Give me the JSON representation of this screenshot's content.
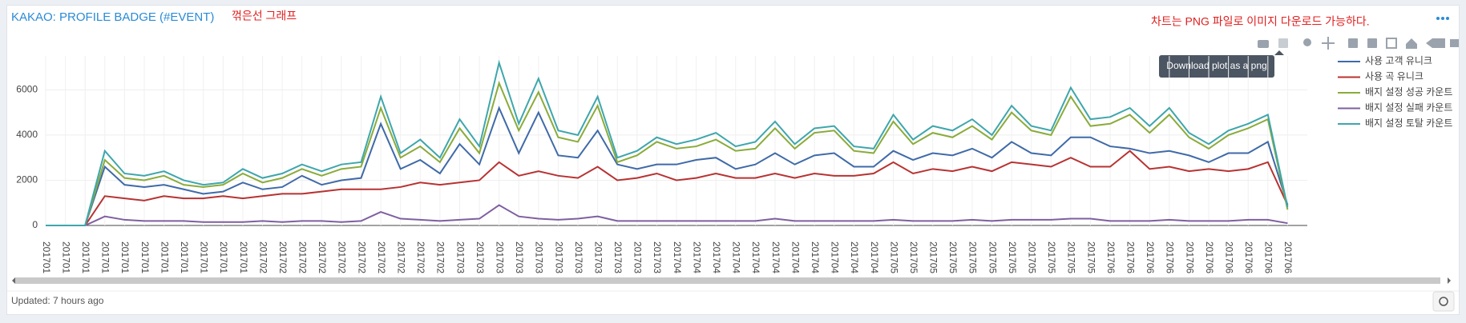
{
  "header": {
    "title": "KAKAO: PROFILE BADGE (#EVENT)",
    "subtitle": "꺾은선 그래프",
    "note": "차트는 PNG 파일로 이미지 다운로드 가능하다."
  },
  "tooltip": "Download plot as a png",
  "footer": {
    "updated": "Updated: 7 hours ago"
  },
  "chart_data": {
    "type": "line",
    "categories": [
      "201701",
      "201701",
      "201701",
      "201701",
      "201701",
      "201701",
      "201701",
      "201701",
      "201701",
      "201701",
      "201701",
      "201702",
      "201702",
      "201702",
      "201702",
      "201702",
      "201702",
      "201702",
      "201702",
      "201702",
      "201702",
      "201703",
      "201703",
      "201703",
      "201703",
      "201703",
      "201703",
      "201703",
      "201703",
      "201703",
      "201703",
      "201703",
      "201704",
      "201704",
      "201704",
      "201704",
      "201704",
      "201704",
      "201704",
      "201704",
      "201704",
      "201704",
      "201704",
      "201705",
      "201705",
      "201705",
      "201705",
      "201705",
      "201705",
      "201705",
      "201705",
      "201705",
      "201705",
      "201705",
      "201706",
      "201706",
      "201706",
      "201706",
      "201706",
      "201706",
      "201706",
      "201706",
      "201706",
      "201706"
    ],
    "series": [
      {
        "name": "사용 고객 유니크",
        "color": "#3f6aa8",
        "values": [
          0,
          0,
          0,
          2600,
          1800,
          1700,
          1800,
          1600,
          1400,
          1500,
          1900,
          1600,
          1700,
          2200,
          1800,
          2000,
          2100,
          4500,
          2500,
          2900,
          2300,
          3600,
          2700,
          5200,
          3200,
          5000,
          3100,
          3000,
          4200,
          2700,
          2500,
          2700,
          2700,
          2900,
          3000,
          2500,
          2700,
          3200,
          2700,
          3100,
          3200,
          2600,
          2600,
          3300,
          2900,
          3200,
          3100,
          3400,
          3000,
          3700,
          3200,
          3100,
          3900,
          3900,
          3500,
          3400,
          3200,
          3300,
          3100,
          2800,
          3200,
          3200,
          3700,
          900
        ]
      },
      {
        "name": "사용 곡 유니크",
        "color": "#b83232",
        "values": [
          0,
          0,
          0,
          1300,
          1200,
          1100,
          1300,
          1200,
          1200,
          1300,
          1200,
          1300,
          1400,
          1400,
          1500,
          1600,
          1600,
          1600,
          1700,
          1900,
          1800,
          1900,
          2000,
          2800,
          2200,
          2400,
          2200,
          2100,
          2600,
          2000,
          2100,
          2300,
          2000,
          2100,
          2300,
          2100,
          2100,
          2300,
          2100,
          2300,
          2200,
          2200,
          2300,
          2800,
          2300,
          2500,
          2400,
          2600,
          2400,
          2800,
          2700,
          2600,
          3000,
          2600,
          2600,
          3300,
          2500,
          2600,
          2400,
          2500,
          2400,
          2500,
          2800,
          900
        ]
      },
      {
        "name": "배지 설정 성공 카운트",
        "color": "#8aab3b",
        "values": [
          0,
          0,
          0,
          2900,
          2100,
          2000,
          2200,
          1800,
          1700,
          1800,
          2300,
          1900,
          2100,
          2500,
          2200,
          2500,
          2600,
          5200,
          3000,
          3500,
          2800,
          4300,
          3200,
          6300,
          4200,
          5900,
          3900,
          3700,
          5300,
          2800,
          3100,
          3700,
          3400,
          3500,
          3800,
          3300,
          3400,
          4300,
          3400,
          4100,
          4200,
          3300,
          3200,
          4600,
          3600,
          4100,
          3900,
          4400,
          3800,
          5000,
          4200,
          4000,
          5700,
          4400,
          4500,
          4900,
          4100,
          4900,
          3900,
          3400,
          4000,
          4300,
          4700,
          700
        ]
      },
      {
        "name": "배지 설정 실패 카운트",
        "color": "#7e5fa0",
        "values": [
          0,
          0,
          0,
          400,
          250,
          200,
          200,
          200,
          150,
          150,
          150,
          200,
          150,
          200,
          200,
          150,
          200,
          600,
          300,
          250,
          200,
          250,
          300,
          900,
          400,
          300,
          250,
          300,
          400,
          200,
          200,
          200,
          200,
          200,
          200,
          200,
          200,
          300,
          200,
          200,
          200,
          200,
          200,
          250,
          200,
          200,
          200,
          250,
          200,
          250,
          250,
          250,
          300,
          300,
          200,
          200,
          200,
          250,
          200,
          200,
          200,
          250,
          250,
          100
        ]
      },
      {
        "name": "배지 설정 토탈 카운트",
        "color": "#3ea6ac",
        "values": [
          0,
          0,
          0,
          3300,
          2300,
          2200,
          2400,
          2000,
          1800,
          1900,
          2500,
          2100,
          2300,
          2700,
          2400,
          2700,
          2800,
          5700,
          3200,
          3800,
          3000,
          4700,
          3500,
          7200,
          4500,
          6500,
          4200,
          4000,
          5700,
          3000,
          3300,
          3900,
          3600,
          3800,
          4100,
          3500,
          3700,
          4600,
          3600,
          4300,
          4400,
          3500,
          3400,
          4900,
          3800,
          4400,
          4200,
          4700,
          4000,
          5300,
          4400,
          4200,
          6100,
          4700,
          4800,
          5200,
          4400,
          5200,
          4100,
          3600,
          4200,
          4500,
          4900,
          800
        ]
      }
    ],
    "ylim": [
      0,
      7500
    ],
    "yticks": [
      0,
      2000,
      4000,
      6000
    ],
    "grid": true,
    "legend": "right"
  }
}
